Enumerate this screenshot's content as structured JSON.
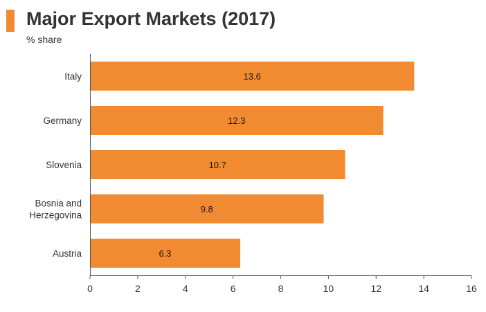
{
  "chart_data": {
    "type": "bar",
    "orientation": "horizontal",
    "title": "Major Export Markets (2017)",
    "subtitle": "% share",
    "categories": [
      "Italy",
      "Germany",
      "Slovenia",
      "Bosnia and\nHerzegovina",
      "Austria"
    ],
    "values": [
      13.6,
      12.3,
      10.7,
      9.8,
      6.3
    ],
    "value_labels": [
      "13.6",
      "12.3",
      "10.7",
      "9.8",
      "6.3"
    ],
    "xlim": [
      0,
      16
    ],
    "xticks": [
      "0",
      "2",
      "4",
      "6",
      "8",
      "10",
      "12",
      "14",
      "16"
    ],
    "xlabel": "",
    "ylabel": "",
    "grid": false,
    "legend": "none",
    "bar_color": "#f28a32",
    "accent_color": "#f28a32"
  }
}
